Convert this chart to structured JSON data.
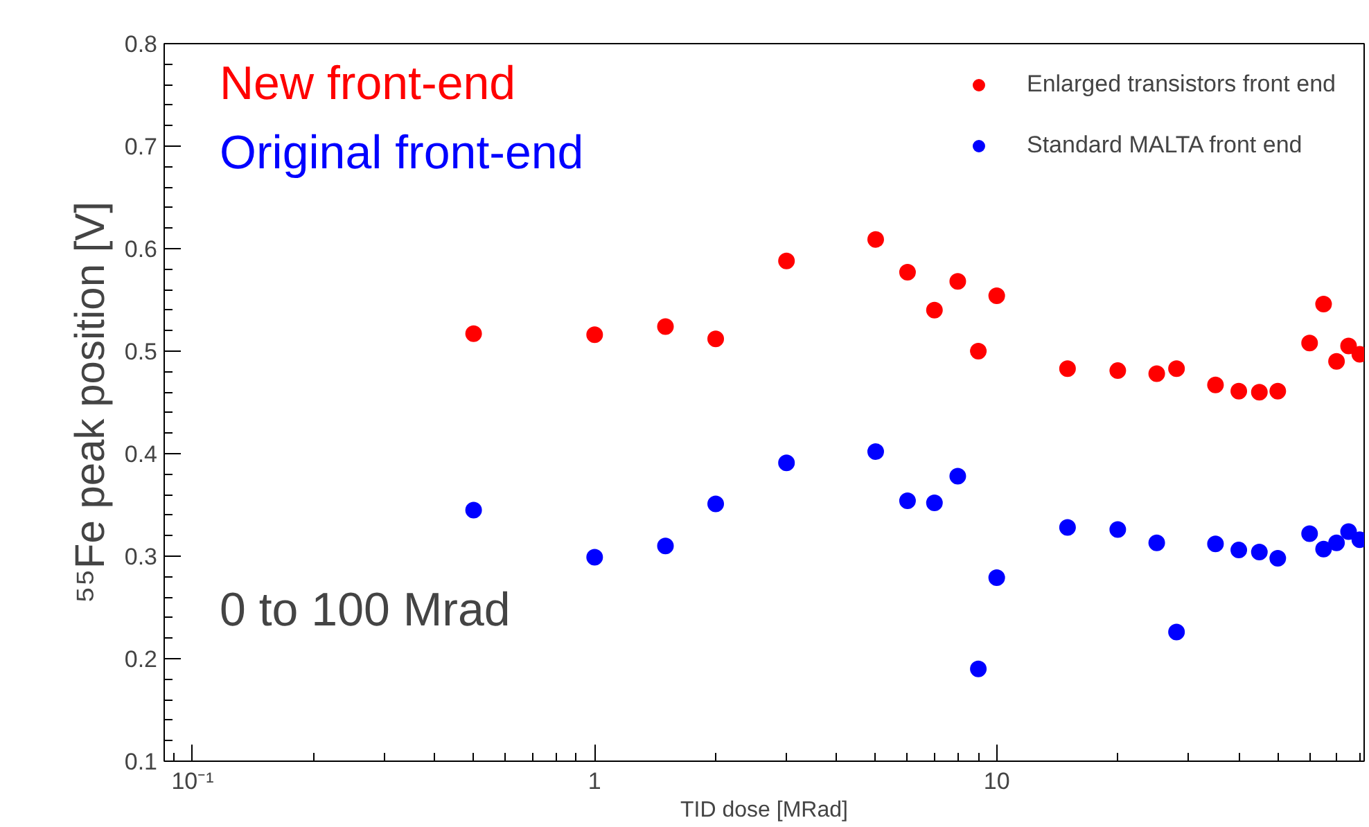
{
  "chart_data": {
    "type": "scatter",
    "xlabel": "TID dose [MRad]",
    "ylabel": "⁵⁵Fe peak position [V]",
    "x": [
      0.5,
      1,
      1.5,
      2,
      3,
      5,
      6,
      7,
      8,
      9,
      10,
      15,
      20,
      25,
      28,
      35,
      40,
      45,
      50,
      60,
      65,
      70,
      75,
      80
    ],
    "series": [
      {
        "name": "Enlarged transistors front end",
        "color": "#ff0000",
        "values": [
          0.517,
          0.516,
          0.524,
          0.512,
          0.588,
          0.609,
          0.577,
          0.54,
          0.568,
          0.5,
          0.554,
          0.483,
          0.481,
          0.478,
          0.483,
          0.467,
          0.461,
          0.46,
          0.461,
          0.508,
          0.546,
          0.49,
          0.505,
          0.497
        ]
      },
      {
        "name": "Standard MALTA front end",
        "color": "#0000ff",
        "values": [
          0.345,
          0.299,
          0.31,
          0.351,
          0.391,
          0.402,
          0.354,
          0.352,
          0.378,
          0.19,
          0.279,
          0.328,
          0.326,
          0.313,
          0.226,
          0.312,
          0.306,
          0.304,
          0.298,
          0.322,
          0.307,
          0.313,
          0.324,
          0.316
        ]
      }
    ],
    "annotations": [
      "New front-end",
      "Original front-end",
      "0 to 100 Mrad"
    ],
    "log": "x",
    "xlim": [
      0.085,
      82
    ],
    "xticks": [
      {
        "value": 0.1,
        "label": "10⁻¹"
      },
      1,
      10
    ],
    "ylim": [
      0.1,
      0.8
    ],
    "yticks": [
      0.1,
      0.2,
      0.3,
      0.4,
      0.5,
      0.6,
      0.7,
      0.8
    ],
    "grid": false,
    "legend": "top right",
    "marker": "circle"
  }
}
